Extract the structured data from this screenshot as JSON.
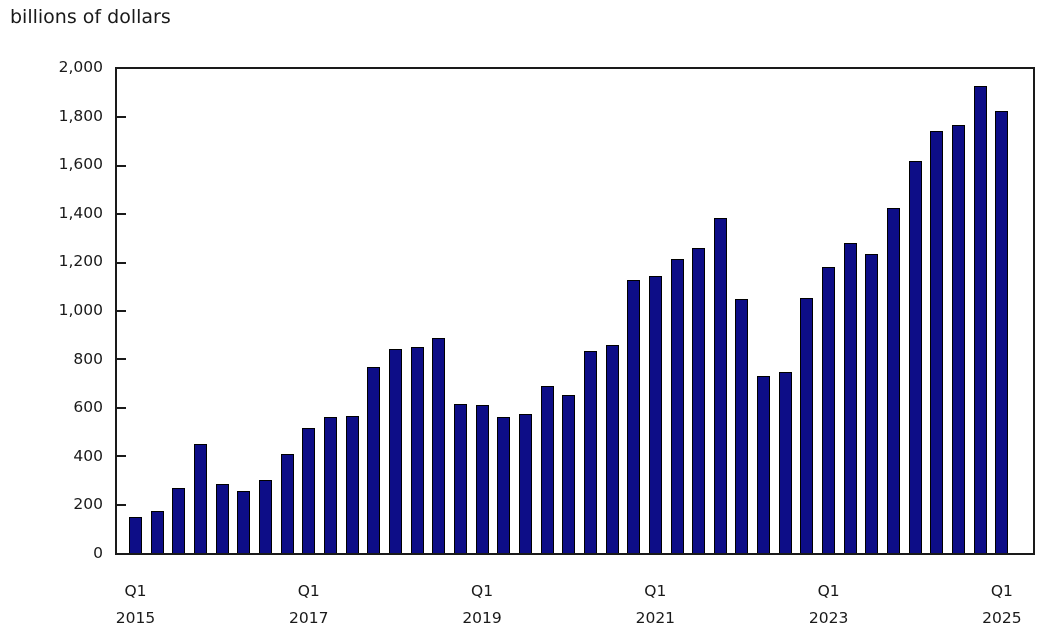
{
  "title": "billions of dollars",
  "chart_data": {
    "type": "bar",
    "title": "billions of dollars",
    "ylabel": "billions of dollars",
    "xlabel": "",
    "ylim": [
      0,
      2000
    ],
    "ytick_interval": 200,
    "grid": false,
    "legend": "none",
    "bar_color": "#0d0d87",
    "bar_border_color": "#000000",
    "axis_color": "#1a1a1a",
    "periods": [
      "2015 Q1",
      "2015 Q2",
      "2015 Q3",
      "2015 Q4",
      "2016 Q1",
      "2016 Q2",
      "2016 Q3",
      "2016 Q4",
      "2017 Q1",
      "2017 Q2",
      "2017 Q3",
      "2017 Q4",
      "2018 Q1",
      "2018 Q2",
      "2018 Q3",
      "2018 Q4",
      "2019 Q1",
      "2019 Q2",
      "2019 Q3",
      "2019 Q4",
      "2020 Q1",
      "2020 Q2",
      "2020 Q3",
      "2020 Q4",
      "2021 Q1",
      "2021 Q2",
      "2021 Q3",
      "2021 Q4",
      "2022 Q1",
      "2022 Q2",
      "2022 Q3",
      "2022 Q4",
      "2023 Q1",
      "2023 Q2",
      "2023 Q3",
      "2023 Q4",
      "2024 Q1",
      "2024 Q2",
      "2024 Q3",
      "2024 Q4",
      "2025 Q1"
    ],
    "values": [
      150,
      175,
      270,
      450,
      285,
      255,
      300,
      410,
      515,
      560,
      565,
      770,
      845,
      850,
      890,
      615,
      610,
      560,
      575,
      690,
      655,
      835,
      860,
      1130,
      1145,
      1215,
      1260,
      1385,
      1050,
      730,
      750,
      1055,
      1180,
      1280,
      1235,
      1425,
      1620,
      1745,
      1770,
      1930,
      1825
    ],
    "ytick_labels": [
      "0",
      "200",
      "400",
      "600",
      "800",
      "1,000",
      "1,200",
      "1,400",
      "1,600",
      "1,800",
      "2,000"
    ],
    "xtick_labels": [
      {
        "index": 0,
        "line1": "Q1",
        "line2": "2015"
      },
      {
        "index": 8,
        "line1": "Q1",
        "line2": "2017"
      },
      {
        "index": 16,
        "line1": "Q1",
        "line2": "2019"
      },
      {
        "index": 24,
        "line1": "Q1",
        "line2": "2021"
      },
      {
        "index": 32,
        "line1": "Q1",
        "line2": "2023"
      },
      {
        "index": 40,
        "line1": "Q1",
        "line2": "2025"
      }
    ]
  }
}
